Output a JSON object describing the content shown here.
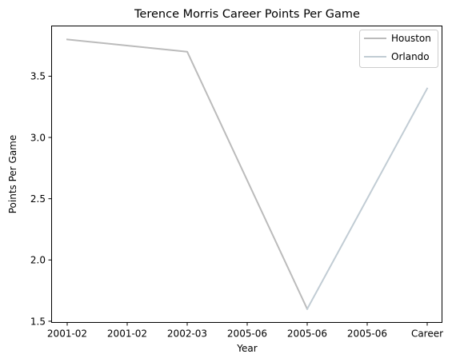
{
  "chart_data": {
    "type": "line",
    "title": "Terence Morris Career Points Per Game",
    "xlabel": "Year",
    "ylabel": "Points Per Game",
    "categories": [
      "2001-02",
      "2001-02",
      "2002-03",
      "2005-06",
      "2005-06",
      "2005-06",
      "Career"
    ],
    "yticks": [
      1.5,
      2.0,
      2.5,
      3.0,
      3.5
    ],
    "ytick_labels": [
      "1.5",
      "2.0",
      "2.5",
      "3.0",
      "3.5"
    ],
    "ylim": [
      1.49,
      3.91
    ],
    "grid": false,
    "legend_position": "top-right",
    "series": [
      {
        "name": "Houston",
        "color": "#bbbbbb",
        "points": [
          [
            0,
            3.8
          ],
          [
            2,
            3.7
          ],
          [
            4,
            1.6
          ]
        ]
      },
      {
        "name": "Orlando",
        "color": "#c1ccd4",
        "points": [
          [
            4,
            1.6
          ],
          [
            6,
            3.4
          ]
        ]
      }
    ]
  }
}
